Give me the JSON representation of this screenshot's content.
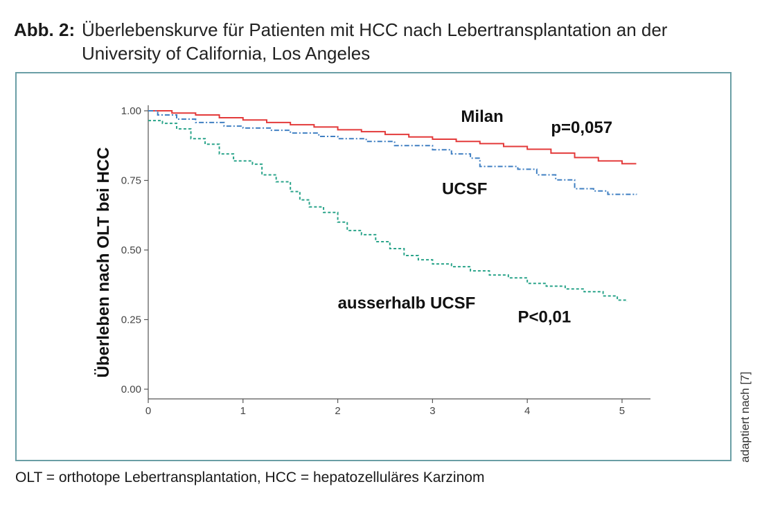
{
  "figure": {
    "label": "Abb. 2:",
    "title": "Überlebenskurve für Patienten mit HCC nach Lebertransplantation an der University of California, Los Angeles",
    "caption": "OLT = orthotope Lebertransplantation, HCC = hepatozelluläres Karzinom",
    "source_note": "adaptiert nach [7]"
  },
  "chart_data": {
    "type": "line",
    "step": true,
    "title": "",
    "xlabel": "",
    "ylabel": "Überleben nach OLT bei HCC",
    "xlim": [
      0,
      5.3
    ],
    "ylim": [
      0,
      1
    ],
    "x_ticks": [
      "0",
      "1",
      "2",
      "3",
      "4",
      "5"
    ],
    "y_ticks": [
      "0.00",
      "0.25",
      "0.50",
      "0.75",
      "1.00"
    ],
    "grid": false,
    "series": [
      {
        "name": "Milan",
        "color": "#e33a3a",
        "dash": "solid",
        "points": [
          [
            0,
            1.0
          ],
          [
            0.25,
            0.992
          ],
          [
            0.5,
            0.985
          ],
          [
            0.75,
            0.975
          ],
          [
            1.0,
            0.967
          ],
          [
            1.25,
            0.958
          ],
          [
            1.5,
            0.95
          ],
          [
            1.75,
            0.942
          ],
          [
            2.0,
            0.932
          ],
          [
            2.25,
            0.925
          ],
          [
            2.5,
            0.915
          ],
          [
            2.75,
            0.906
          ],
          [
            3.0,
            0.898
          ],
          [
            3.25,
            0.89
          ],
          [
            3.5,
            0.882
          ],
          [
            3.75,
            0.872
          ],
          [
            4.0,
            0.862
          ],
          [
            4.25,
            0.848
          ],
          [
            4.5,
            0.832
          ],
          [
            4.75,
            0.82
          ],
          [
            5.0,
            0.81
          ],
          [
            5.15,
            0.81
          ]
        ]
      },
      {
        "name": "UCSF",
        "color": "#3f7fc2",
        "dash": "dashdot",
        "points": [
          [
            0,
            1.0
          ],
          [
            0.1,
            0.985
          ],
          [
            0.3,
            0.97
          ],
          [
            0.5,
            0.958
          ],
          [
            0.8,
            0.945
          ],
          [
            1.0,
            0.938
          ],
          [
            1.3,
            0.93
          ],
          [
            1.5,
            0.92
          ],
          [
            1.8,
            0.908
          ],
          [
            2.0,
            0.9
          ],
          [
            2.3,
            0.89
          ],
          [
            2.6,
            0.875
          ],
          [
            3.0,
            0.86
          ],
          [
            3.2,
            0.845
          ],
          [
            3.4,
            0.83
          ],
          [
            3.5,
            0.8
          ],
          [
            3.9,
            0.79
          ],
          [
            4.1,
            0.77
          ],
          [
            4.3,
            0.752
          ],
          [
            4.5,
            0.72
          ],
          [
            4.7,
            0.712
          ],
          [
            4.85,
            0.7
          ],
          [
            5.15,
            0.698
          ]
        ]
      },
      {
        "name": "ausserhalb UCSF",
        "color": "#2aa48a",
        "dash": "dashed",
        "points": [
          [
            0,
            0.965
          ],
          [
            0.15,
            0.955
          ],
          [
            0.3,
            0.935
          ],
          [
            0.45,
            0.9
          ],
          [
            0.6,
            0.88
          ],
          [
            0.75,
            0.845
          ],
          [
            0.9,
            0.82
          ],
          [
            1.1,
            0.808
          ],
          [
            1.2,
            0.77
          ],
          [
            1.35,
            0.745
          ],
          [
            1.5,
            0.71
          ],
          [
            1.6,
            0.68
          ],
          [
            1.7,
            0.655
          ],
          [
            1.85,
            0.635
          ],
          [
            2.0,
            0.6
          ],
          [
            2.1,
            0.57
          ],
          [
            2.25,
            0.555
          ],
          [
            2.4,
            0.53
          ],
          [
            2.55,
            0.505
          ],
          [
            2.7,
            0.48
          ],
          [
            2.85,
            0.465
          ],
          [
            3.0,
            0.45
          ],
          [
            3.2,
            0.44
          ],
          [
            3.4,
            0.425
          ],
          [
            3.6,
            0.41
          ],
          [
            3.8,
            0.4
          ],
          [
            4.0,
            0.38
          ],
          [
            4.2,
            0.37
          ],
          [
            4.4,
            0.36
          ],
          [
            4.6,
            0.35
          ],
          [
            4.8,
            0.335
          ],
          [
            4.95,
            0.32
          ],
          [
            5.05,
            0.315
          ]
        ]
      }
    ],
    "annotations": [
      {
        "text": "Milan",
        "x": 3.3,
        "y": 0.96
      },
      {
        "text": "p=0,057",
        "x": 4.25,
        "y": 0.92
      },
      {
        "text": "UCSF",
        "x": 3.1,
        "y": 0.7
      },
      {
        "text": "ausserhalb UCSF",
        "x": 2.0,
        "y": 0.29
      },
      {
        "text": "P<0,01",
        "x": 3.9,
        "y": 0.24
      }
    ]
  }
}
